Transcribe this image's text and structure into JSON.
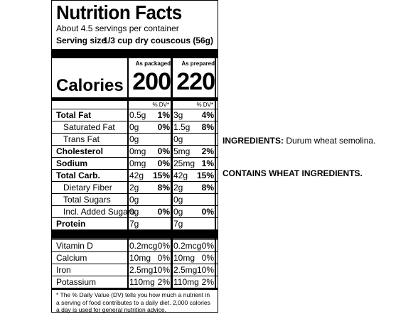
{
  "label": {
    "title": "Nutrition Facts",
    "servings": "About 4.5 servings per container",
    "serving_size_label": "Serving size",
    "serving_size": "1/3 cup dry couscous (56g)",
    "columns": [
      "As packaged",
      "As prepared"
    ],
    "calories_label": "Calories",
    "calories": [
      "200",
      "220"
    ],
    "dv_header": [
      "% DV*",
      "% DV*"
    ],
    "nutrients": [
      {
        "name": "Total Fat",
        "bold": true,
        "indent": false,
        "packaged": [
          "0.5g",
          "1%"
        ],
        "prepared": [
          "3g",
          "4%"
        ]
      },
      {
        "name": "Saturated Fat",
        "bold": false,
        "indent": true,
        "packaged": [
          "0g",
          "0%"
        ],
        "prepared": [
          "1.5g",
          "8%"
        ]
      },
      {
        "name": "Trans Fat",
        "bold": false,
        "indent": true,
        "packaged": [
          "0g"
        ],
        "prepared": [
          "0g"
        ]
      },
      {
        "name": "Cholesterol",
        "bold": true,
        "indent": false,
        "packaged": [
          "0mg",
          "0%"
        ],
        "prepared": [
          "5mg",
          "2%"
        ]
      },
      {
        "name": "Sodium",
        "bold": true,
        "indent": false,
        "packaged": [
          "0mg",
          "0%"
        ],
        "prepared": [
          "25mg",
          "1%"
        ]
      },
      {
        "name": "Total Carb.",
        "bold": true,
        "indent": false,
        "packaged": [
          "42g",
          "15%"
        ],
        "prepared": [
          "42g",
          "15%"
        ]
      },
      {
        "name": "Dietary Fiber",
        "bold": false,
        "indent": true,
        "packaged": [
          "2g",
          "8%"
        ],
        "prepared": [
          "2g",
          "8%"
        ]
      },
      {
        "name": "Total Sugars",
        "bold": false,
        "indent": true,
        "packaged": [
          "0g"
        ],
        "prepared": [
          "0g"
        ]
      },
      {
        "name": "Incl. Added Sugars",
        "bold": false,
        "indent": true,
        "packaged": [
          "0g",
          "0%"
        ],
        "prepared": [
          "0g",
          "0%"
        ]
      },
      {
        "name": "Protein",
        "bold": true,
        "indent": false,
        "packaged": [
          "7g"
        ],
        "prepared": [
          "7g"
        ]
      }
    ],
    "vitamins": [
      {
        "name": "Vitamin D",
        "packaged": [
          "0.2mcg",
          "0%"
        ],
        "prepared": [
          "0.2mcg",
          "0%"
        ]
      },
      {
        "name": "Calcium",
        "packaged": [
          "10mg",
          "0%"
        ],
        "prepared": [
          "10mg",
          "0%"
        ]
      },
      {
        "name": "Iron",
        "packaged": [
          "2.5mg",
          "10%"
        ],
        "prepared": [
          "2.5mg",
          "10%"
        ]
      },
      {
        "name": "Potassium",
        "packaged": [
          "110mg",
          "2%"
        ],
        "prepared": [
          "110mg",
          "2%"
        ]
      }
    ],
    "footnote": "* The % Daily Value (DV) tells you how much a nutrient in a serving of food contributes to a daily diet. 2,000 calories a day is used for general nutrition advice."
  },
  "ingredients": {
    "label": "INGREDIENTS:",
    "text": "Durum wheat semolina.",
    "allergens": "CONTAINS WHEAT INGREDIENTS."
  }
}
